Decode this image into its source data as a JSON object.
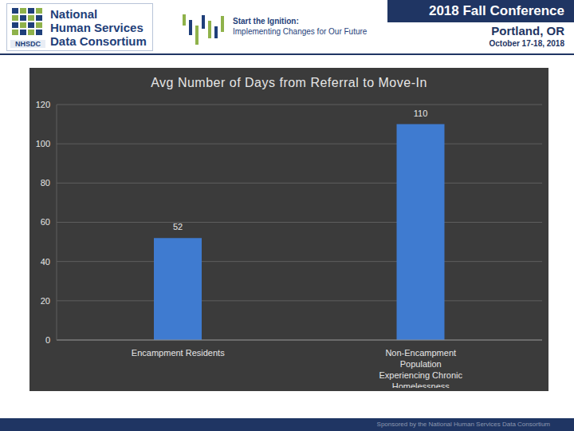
{
  "header": {
    "organization": [
      "National",
      "Human Services",
      "Data Consortium"
    ],
    "logo_text": "NHSDC",
    "tagline": [
      "Start the Ignition:",
      "Implementing Changes for Our Future"
    ],
    "conference": "2018 Fall Conference",
    "location": "Portland, OR",
    "dates": "October 17-18, 2018"
  },
  "footer": "Sponsored by the National Human Services Data Consortium",
  "chart_data": {
    "type": "bar",
    "title": "Avg Number of Days from Referral to Move-In",
    "categories": [
      "Encampment Residents",
      "Non-Encampment Population Experiencing Chronic Homelessness"
    ],
    "values": [
      52,
      110
    ],
    "color": "#3f7bd0",
    "ylim": [
      0,
      120
    ],
    "yticks": [
      0,
      20,
      40,
      60,
      80,
      100,
      120
    ],
    "grid": true,
    "data_labels": true
  }
}
